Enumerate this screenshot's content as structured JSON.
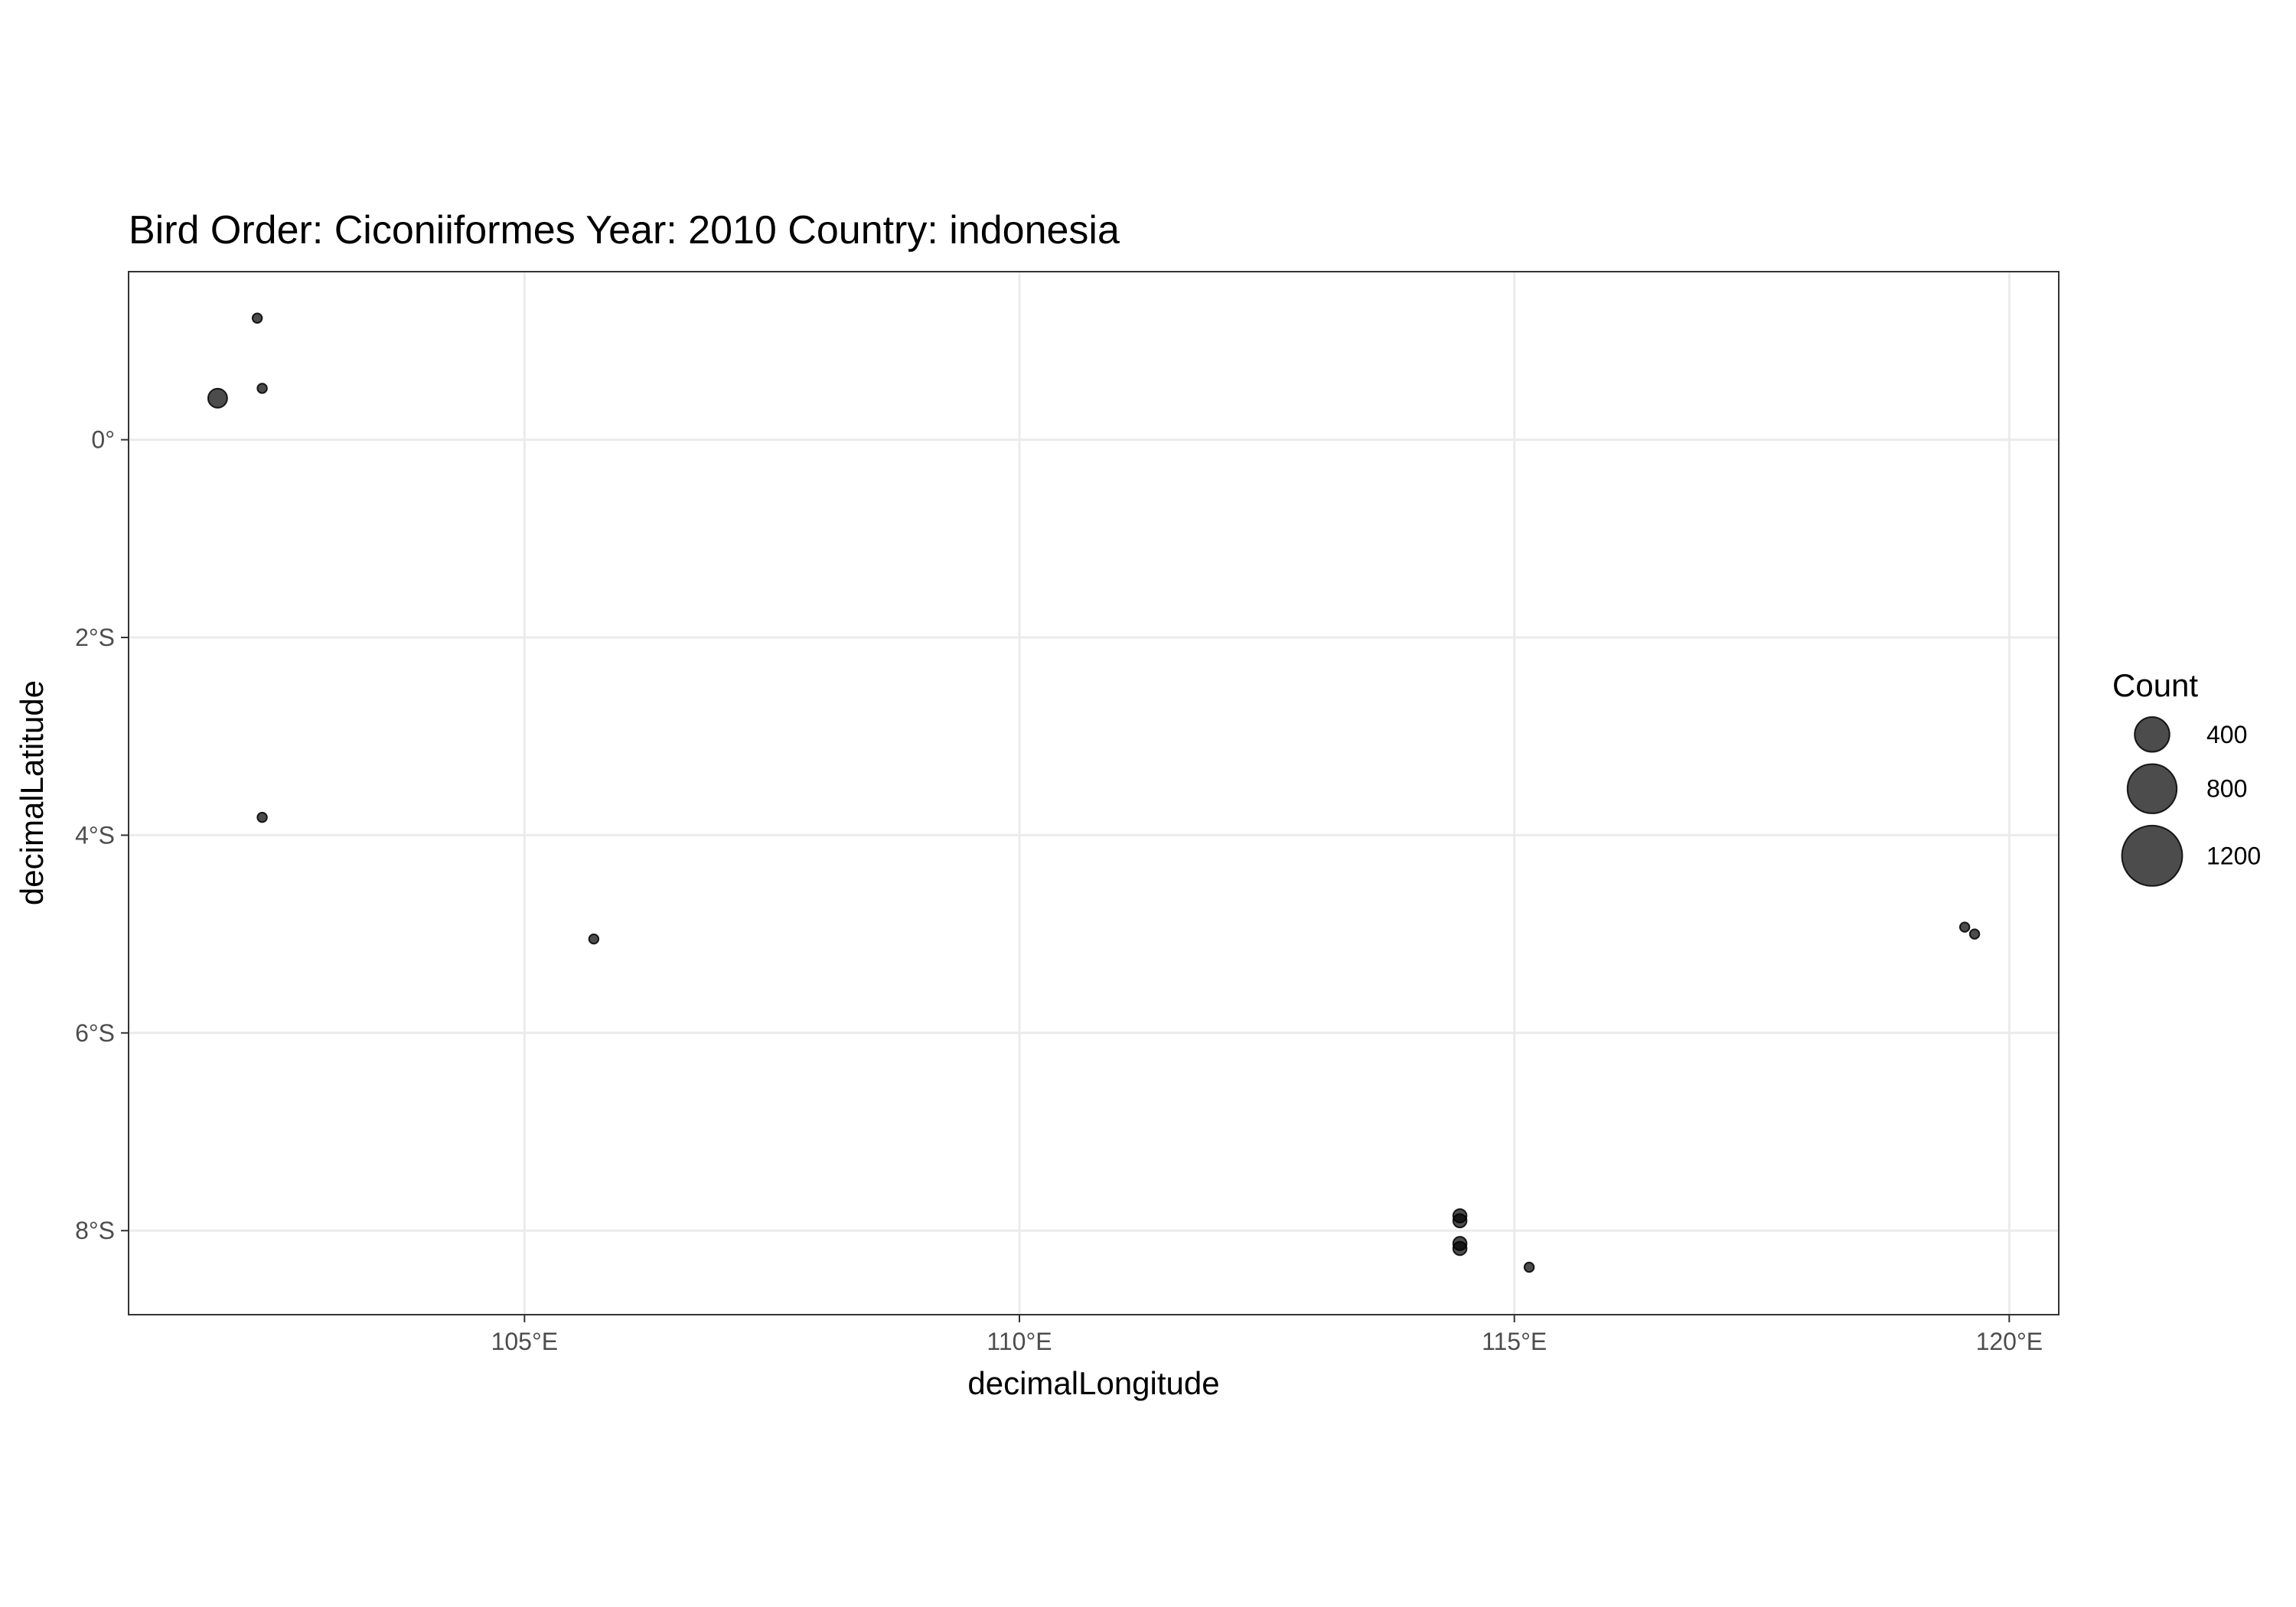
{
  "chart_data": {
    "type": "scatter",
    "title": "Bird Order: Ciconiiformes Year: 2010 Country: indonesia",
    "xlabel": "decimalLongitude",
    "ylabel": "decimalLatitude",
    "xlim": [
      101,
      120.5
    ],
    "ylim": [
      -8.85,
      1.7
    ],
    "x_ticks": [
      {
        "value": 105,
        "label": "105°E"
      },
      {
        "value": 110,
        "label": "110°E"
      },
      {
        "value": 115,
        "label": "115°E"
      },
      {
        "value": 120,
        "label": "120°E"
      }
    ],
    "y_ticks": [
      {
        "value": 0,
        "label": "0°"
      },
      {
        "value": -2,
        "label": "2°S"
      },
      {
        "value": -4,
        "label": "4°S"
      },
      {
        "value": -6,
        "label": "6°S"
      },
      {
        "value": -8,
        "label": "8°S"
      }
    ],
    "grid": true,
    "point_color": "#000000",
    "point_alpha": 0.7,
    "size_legend": {
      "title": "Count",
      "placement": "right",
      "entries": [
        {
          "value": 400,
          "label": "400"
        },
        {
          "value": 800,
          "label": "800"
        },
        {
          "value": 1200,
          "label": "1200"
        }
      ]
    },
    "points": [
      {
        "x": 102.3,
        "y": 1.23,
        "count": 30
      },
      {
        "x": 101.9,
        "y": 0.42,
        "count": 120
      },
      {
        "x": 102.35,
        "y": 0.52,
        "count": 30
      },
      {
        "x": 102.35,
        "y": -3.82,
        "count": 30
      },
      {
        "x": 105.7,
        "y": -5.05,
        "count": 30
      },
      {
        "x": 114.45,
        "y": -7.85,
        "count": 60
      },
      {
        "x": 114.45,
        "y": -7.9,
        "count": 60
      },
      {
        "x": 114.45,
        "y": -8.13,
        "count": 60
      },
      {
        "x": 114.45,
        "y": -8.18,
        "count": 60
      },
      {
        "x": 115.15,
        "y": -8.37,
        "count": 30
      },
      {
        "x": 119.55,
        "y": -4.93,
        "count": 30
      },
      {
        "x": 119.65,
        "y": -5.0,
        "count": 30
      }
    ]
  }
}
